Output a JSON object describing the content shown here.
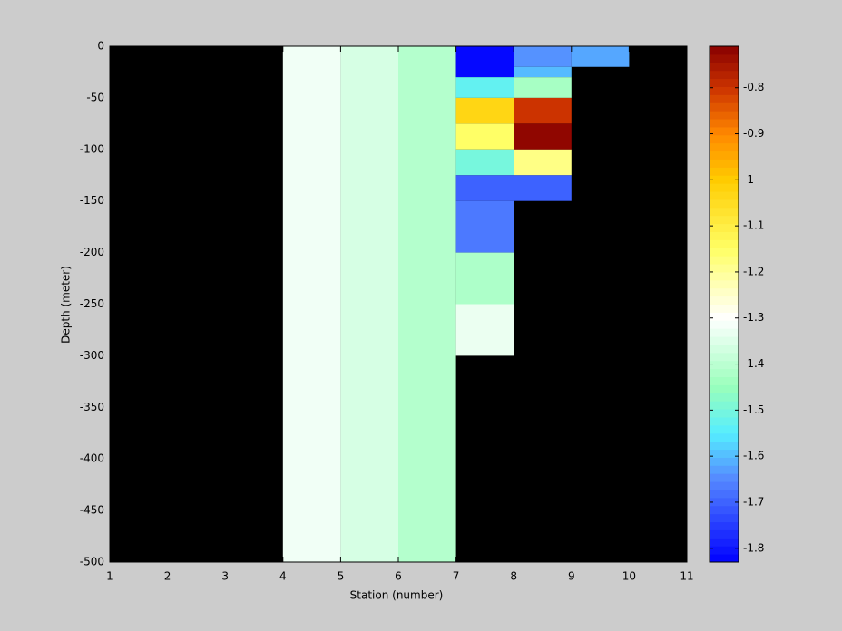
{
  "chart_data": {
    "type": "heatmap",
    "xlabel": "Station (number)",
    "ylabel": "Depth (meter)",
    "xlim": [
      1,
      11
    ],
    "xticks": [
      1,
      2,
      3,
      4,
      5,
      6,
      7,
      8,
      9,
      10,
      11
    ],
    "ylim": [
      -500,
      0
    ],
    "yticks": [
      0,
      -50,
      -100,
      -150,
      -200,
      -250,
      -300,
      -350,
      -400,
      -450,
      -500
    ],
    "clim": [
      -1.83,
      -0.71
    ],
    "cticks": [
      -0.8,
      -0.9,
      -1,
      -1.1,
      -1.2,
      -1.3,
      -1.4,
      -1.5,
      -1.6,
      -1.7,
      -1.8
    ],
    "colorscale": [
      [
        -1.83,
        "#0000ff"
      ],
      [
        -1.65,
        "#5588ff"
      ],
      [
        -1.55,
        "#55eeff"
      ],
      [
        -1.45,
        "#99ffbb"
      ],
      [
        -1.3,
        "#ffffff"
      ],
      [
        -1.15,
        "#ffff66"
      ],
      [
        -1.0,
        "#ffcc00"
      ],
      [
        -0.9,
        "#ff8800"
      ],
      [
        -0.8,
        "#cc3300"
      ],
      [
        -0.71,
        "#880000"
      ]
    ],
    "background": "#000000",
    "cells": [
      {
        "x": [
          4,
          5
        ],
        "y": [
          0,
          -500
        ],
        "value": -1.32
      },
      {
        "x": [
          5,
          6
        ],
        "y": [
          0,
          -500
        ],
        "value": -1.36
      },
      {
        "x": [
          6,
          7
        ],
        "y": [
          0,
          -500
        ],
        "value": -1.41
      },
      {
        "x": [
          7,
          8
        ],
        "y": [
          0,
          -30
        ],
        "value": -1.82
      },
      {
        "x": [
          7,
          8
        ],
        "y": [
          -30,
          -50
        ],
        "value": -1.53
      },
      {
        "x": [
          7,
          8
        ],
        "y": [
          -50,
          -75
        ],
        "value": -1.03
      },
      {
        "x": [
          7,
          8
        ],
        "y": [
          -75,
          -100
        ],
        "value": -1.15
      },
      {
        "x": [
          7,
          8
        ],
        "y": [
          -100,
          -125
        ],
        "value": -1.5
      },
      {
        "x": [
          7,
          8
        ],
        "y": [
          -125,
          -150
        ],
        "value": -1.7
      },
      {
        "x": [
          7,
          8
        ],
        "y": [
          -150,
          -200
        ],
        "value": -1.67
      },
      {
        "x": [
          7,
          8
        ],
        "y": [
          -200,
          -250
        ],
        "value": -1.42
      },
      {
        "x": [
          7,
          8
        ],
        "y": [
          -250,
          -300
        ],
        "value": -1.33
      },
      {
        "x": [
          8,
          9
        ],
        "y": [
          0,
          -20
        ],
        "value": -1.64
      },
      {
        "x": [
          8,
          9
        ],
        "y": [
          -20,
          -30
        ],
        "value": -1.6
      },
      {
        "x": [
          8,
          9
        ],
        "y": [
          -30,
          -50
        ],
        "value": -1.43
      },
      {
        "x": [
          8,
          9
        ],
        "y": [
          -50,
          -75
        ],
        "value": -0.8
      },
      {
        "x": [
          8,
          9
        ],
        "y": [
          -75,
          -100
        ],
        "value": -0.72
      },
      {
        "x": [
          8,
          9
        ],
        "y": [
          -100,
          -125
        ],
        "value": -1.18
      },
      {
        "x": [
          8,
          9
        ],
        "y": [
          -125,
          -150
        ],
        "value": -1.7
      },
      {
        "x": [
          9,
          10
        ],
        "y": [
          0,
          -20
        ],
        "value": -1.62
      }
    ]
  }
}
